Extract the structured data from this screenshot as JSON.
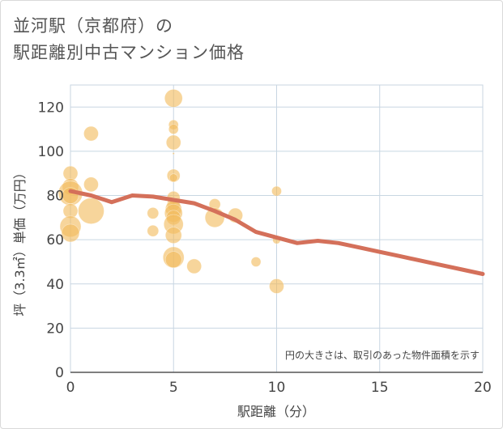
{
  "title": {
    "line1": "並河駅（京都府）の",
    "line2": "駅距離別中古マンション価格"
  },
  "chart_data": {
    "type": "scatter",
    "xlabel": "駅距離（分）",
    "ylabel": "坪（3.3㎡）単価（万円）",
    "xlim": [
      0,
      20
    ],
    "ylim": [
      0,
      130
    ],
    "xticks": [
      "0",
      "5",
      "10",
      "15",
      "20"
    ],
    "yticks": [
      "0",
      "20",
      "40",
      "60",
      "80",
      "100",
      "120"
    ],
    "annotation": "円の大きさは、取引のあった物件面積を示す",
    "grid": true,
    "colors": {
      "bubble": "#f2bc5e",
      "trend": "#d4705a",
      "grid": "#c8d6e2",
      "axis": "#444444"
    },
    "bubbles": [
      {
        "x": 0,
        "y": 90,
        "s": 9
      },
      {
        "x": 0,
        "y": 84,
        "s": 10
      },
      {
        "x": 0,
        "y": 81,
        "s": 15
      },
      {
        "x": 0,
        "y": 80,
        "s": 10
      },
      {
        "x": 0,
        "y": 73,
        "s": 9
      },
      {
        "x": 0,
        "y": 66,
        "s": 13
      },
      {
        "x": 0,
        "y": 63,
        "s": 11
      },
      {
        "x": 1,
        "y": 108,
        "s": 9
      },
      {
        "x": 1,
        "y": 85,
        "s": 9
      },
      {
        "x": 1,
        "y": 73,
        "s": 16
      },
      {
        "x": 4,
        "y": 72,
        "s": 7
      },
      {
        "x": 4,
        "y": 64,
        "s": 7
      },
      {
        "x": 5,
        "y": 124,
        "s": 11
      },
      {
        "x": 5,
        "y": 112,
        "s": 6
      },
      {
        "x": 5,
        "y": 110,
        "s": 6
      },
      {
        "x": 5,
        "y": 104,
        "s": 9
      },
      {
        "x": 5,
        "y": 99,
        "s": 1
      },
      {
        "x": 5,
        "y": 89,
        "s": 8
      },
      {
        "x": 5,
        "y": 88,
        "s": 5
      },
      {
        "x": 5,
        "y": 79,
        "s": 8
      },
      {
        "x": 5,
        "y": 76,
        "s": 8
      },
      {
        "x": 5,
        "y": 74,
        "s": 10
      },
      {
        "x": 5,
        "y": 72,
        "s": 11
      },
      {
        "x": 5,
        "y": 70,
        "s": 9
      },
      {
        "x": 5,
        "y": 67,
        "s": 12
      },
      {
        "x": 5,
        "y": 62,
        "s": 10
      },
      {
        "x": 5,
        "y": 52,
        "s": 13
      },
      {
        "x": 5,
        "y": 51,
        "s": 10
      },
      {
        "x": 6,
        "y": 48,
        "s": 9
      },
      {
        "x": 7,
        "y": 76,
        "s": 7
      },
      {
        "x": 7,
        "y": 70,
        "s": 12
      },
      {
        "x": 8,
        "y": 71,
        "s": 9
      },
      {
        "x": 9,
        "y": 50,
        "s": 6
      },
      {
        "x": 10,
        "y": 82,
        "s": 6
      },
      {
        "x": 10,
        "y": 60,
        "s": 5
      },
      {
        "x": 10,
        "y": 39,
        "s": 9
      }
    ],
    "trend": {
      "x": [
        0,
        1,
        2,
        3,
        4,
        5,
        6,
        7,
        8,
        9,
        10,
        11,
        12,
        13,
        14,
        15,
        16,
        17,
        18,
        19,
        20
      ],
      "y": [
        82,
        80,
        77,
        80,
        79.5,
        78,
        76.5,
        73,
        69,
        63.5,
        61,
        58.5,
        59.5,
        58.5,
        56.5,
        54.5,
        52.5,
        50.5,
        48.5,
        46.5,
        44.5
      ]
    }
  }
}
